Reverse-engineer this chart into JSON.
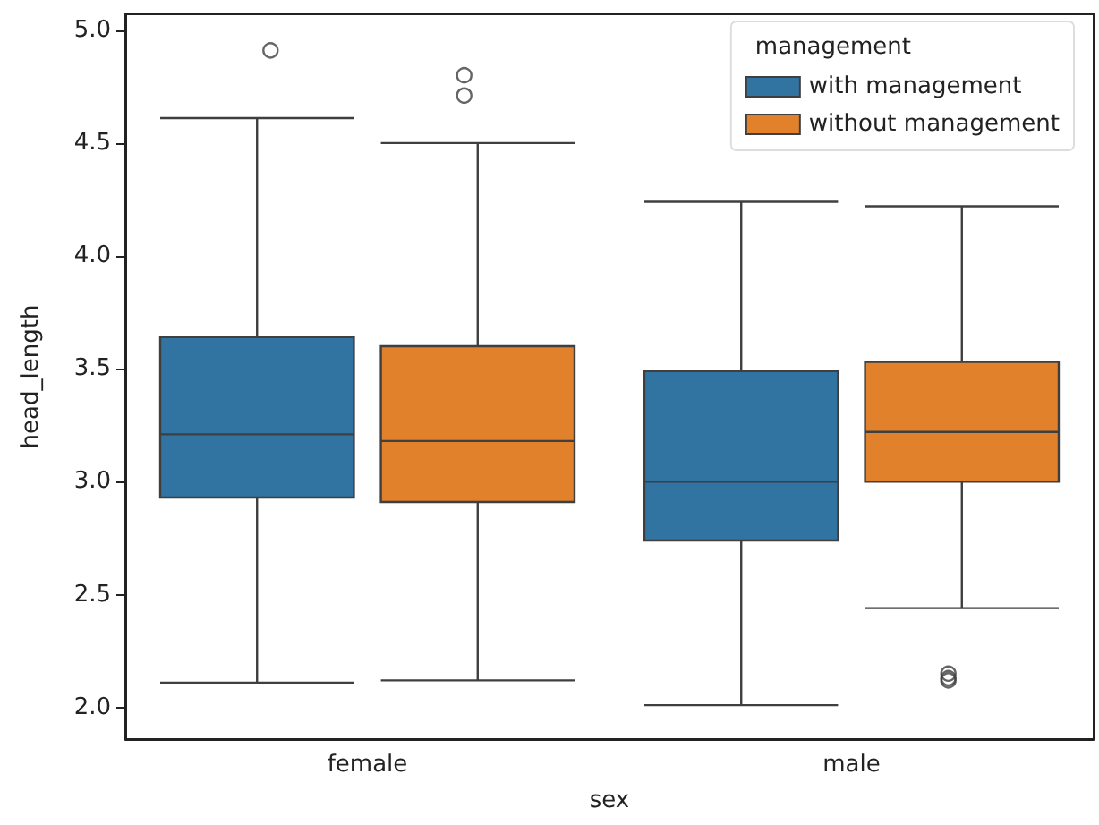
{
  "chart_data": {
    "type": "box",
    "xlabel": "sex",
    "ylabel": "head_length",
    "legend_title": "management",
    "legend": "top right",
    "categories": [
      "female",
      "male"
    ],
    "ylim": [
      1.86,
      5.07
    ],
    "yticks": [
      {
        "value": 2,
        "label": "2.0"
      },
      {
        "value": 2.5,
        "label": "2.5"
      },
      {
        "value": 3,
        "label": "3.0"
      },
      {
        "value": 3.5,
        "label": "3.5"
      },
      {
        "value": 4,
        "label": "4.0"
      },
      {
        "value": 4.5,
        "label": "4.5"
      },
      {
        "value": 5,
        "label": "5.0"
      }
    ],
    "series": [
      {
        "name": "with management",
        "color": "#3274a1",
        "boxes": [
          {
            "low": 2.11,
            "q1": 2.93,
            "median": 3.21,
            "q3": 3.64,
            "high": 4.61,
            "outliers": [
              4.91
            ]
          },
          {
            "low": 2.01,
            "q1": 2.74,
            "median": 3.0,
            "q3": 3.49,
            "high": 4.24
          }
        ]
      },
      {
        "name": "without management",
        "color": "#e1812c",
        "boxes": [
          {
            "low": 2.12,
            "q1": 2.91,
            "median": 3.18,
            "q3": 3.6,
            "high": 4.5,
            "outliers": [
              4.8,
              4.71
            ]
          },
          {
            "low": 2.44,
            "q1": 3.0,
            "median": 3.22,
            "q3": 3.53,
            "high": 4.22,
            "outliers": [
              2.15,
              2.13,
              2.12
            ]
          }
        ]
      }
    ]
  }
}
